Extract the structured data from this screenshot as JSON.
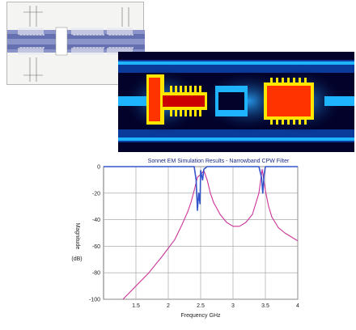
{
  "figure": {
    "layout_panel": {
      "kind": "layout-drawing"
    },
    "simulation_panel": {
      "kind": "current-density-map",
      "colors": [
        "#00206a",
        "#1fb4ff",
        "#ffe600",
        "#ff3300",
        "#cc0000"
      ]
    }
  },
  "chart_data": {
    "type": "line",
    "title": "Sonnet EM Simulation Results - Narrowband CPW Filter",
    "xlabel": "Frequency GHz",
    "ylabel": "Magnitude",
    "ylabel_unit": "(dB)",
    "xlim": [
      1,
      4
    ],
    "ylim": [
      -100,
      0
    ],
    "xticks": [
      "1.5",
      "2",
      "2.5",
      "3",
      "3.5",
      "4"
    ],
    "yticks": [
      "0",
      "-20",
      "-40",
      "-60",
      "-80",
      "-100"
    ],
    "grid": true,
    "series": [
      {
        "color": "#cc3399",
        "x": [
          1.3,
          1.5,
          1.7,
          1.9,
          2.1,
          2.2,
          2.3,
          2.35,
          2.4,
          2.45,
          2.5,
          2.55,
          2.6,
          2.65,
          2.7,
          2.8,
          2.9,
          3.0,
          3.1,
          3.2,
          3.3,
          3.4,
          3.45,
          3.5,
          3.55,
          3.6,
          3.7,
          3.8,
          3.9,
          4.0
        ],
        "y": [
          -100,
          -90,
          -80,
          -68,
          -55,
          -45,
          -34,
          -27,
          -18,
          -8,
          -6,
          -3,
          -10,
          -20,
          -27,
          -36,
          -42,
          -45,
          -45,
          -42,
          -36,
          -20,
          -2,
          -18,
          -30,
          -38,
          -46,
          -50,
          -53,
          -56
        ]
      },
      {
        "color": "#3355cc",
        "x": [
          1.0,
          2.4,
          2.43,
          2.45,
          2.47,
          2.49,
          2.5,
          2.53,
          2.55,
          2.6,
          3.4,
          3.44,
          3.46,
          3.48,
          3.5,
          4.0
        ],
        "y": [
          0,
          0,
          -10,
          -33,
          -20,
          -28,
          -3,
          -10,
          -2,
          0,
          0,
          -8,
          -20,
          -6,
          0,
          0
        ]
      }
    ]
  }
}
